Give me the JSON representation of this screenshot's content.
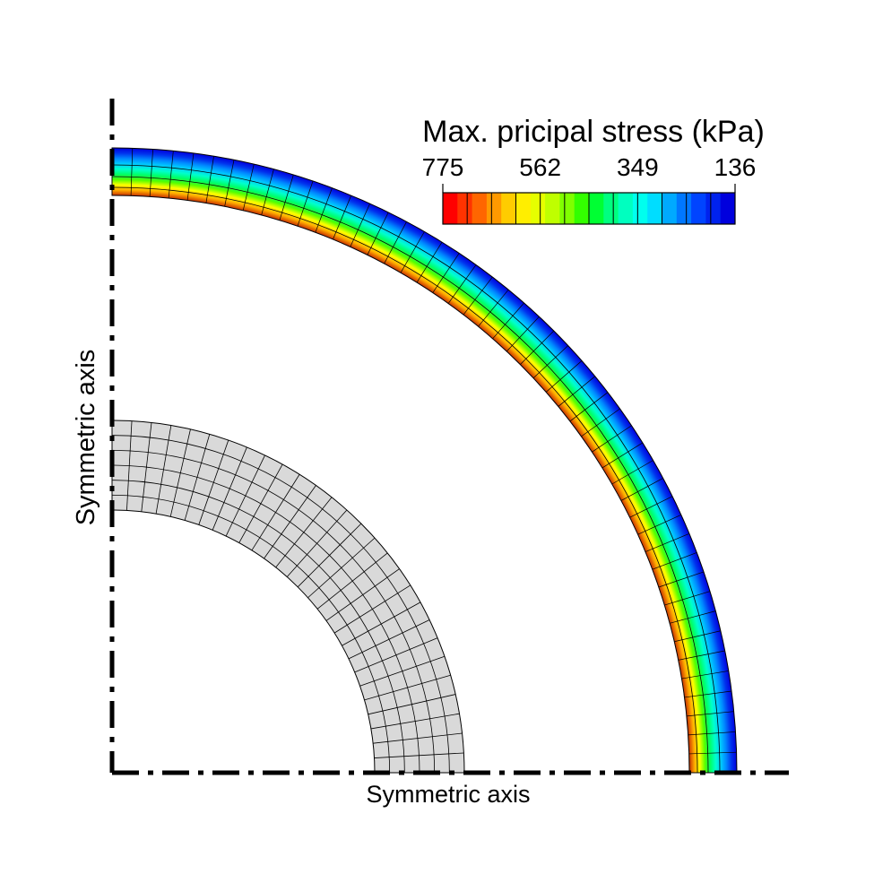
{
  "legend": {
    "title": "Max. pricipal stress (kPa)",
    "tick_labels": [
      "775",
      "562",
      "349",
      "136"
    ],
    "colors": [
      "#ff0000",
      "#ff3300",
      "#ff6600",
      "#ff9900",
      "#ffcc00",
      "#ffee00",
      "#e6ff00",
      "#bfff00",
      "#80ff00",
      "#33ff00",
      "#00ff33",
      "#00ff80",
      "#00ffbf",
      "#00ffee",
      "#00ddff",
      "#00aaff",
      "#0077ff",
      "#0044ff",
      "#0022ee",
      "#0000dd"
    ]
  },
  "axes": {
    "vertical_label": "Symmetric axis",
    "horizontal_label": "Symmetric axis"
  },
  "colors": {
    "inner_mesh_fill": "#d9d9d9",
    "mesh_line": "#000000",
    "ring_gradient": [
      "#c83200",
      "#ffaa00",
      "#ffff00",
      "#55ff00",
      "#00ff66",
      "#00ffcc",
      "#00ccff",
      "#0088ff",
      "#0033ee",
      "#0000dd"
    ]
  }
}
